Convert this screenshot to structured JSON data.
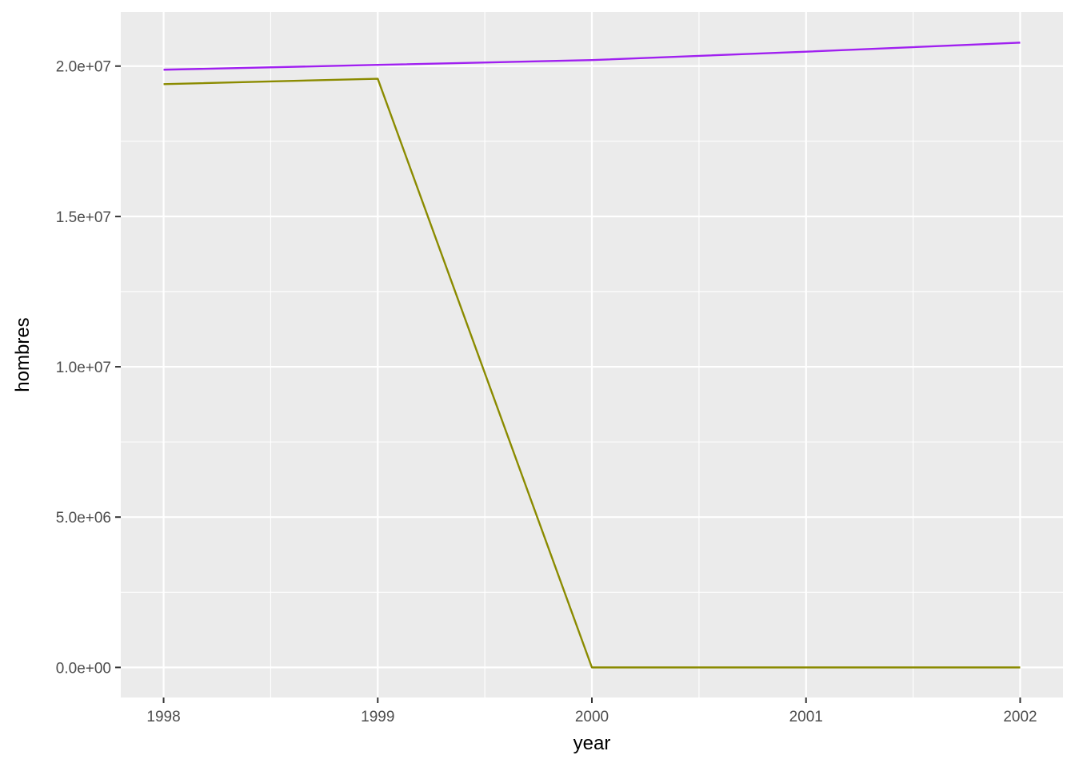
{
  "chart_data": {
    "type": "line",
    "title": "",
    "xlabel": "year",
    "ylabel": "hombres",
    "x": [
      1998,
      1999,
      2000,
      2001,
      2002
    ],
    "x_tick_labels": [
      "1998",
      "1999",
      "2000",
      "2001",
      "2002"
    ],
    "y_ticks": [
      0,
      5000000,
      10000000,
      15000000,
      20000000
    ],
    "y_tick_labels": [
      "0.0e+00",
      "5.0e+06",
      "1.0e+07",
      "1.5e+07",
      "2.0e+07"
    ],
    "xlim": [
      1997.8,
      2002.2
    ],
    "ylim": [
      -1000000,
      21800000
    ],
    "grid": true,
    "legend": "none",
    "series": [
      {
        "color": "#A020F0",
        "values": [
          19880000,
          20040000,
          20200000,
          20480000,
          20780000
        ]
      },
      {
        "color": "#8B8B00",
        "values": [
          19400000,
          19580000,
          0,
          0,
          0
        ]
      }
    ],
    "colors": {
      "panel_background": "#EBEBEB",
      "grid": "#FFFFFF"
    }
  }
}
